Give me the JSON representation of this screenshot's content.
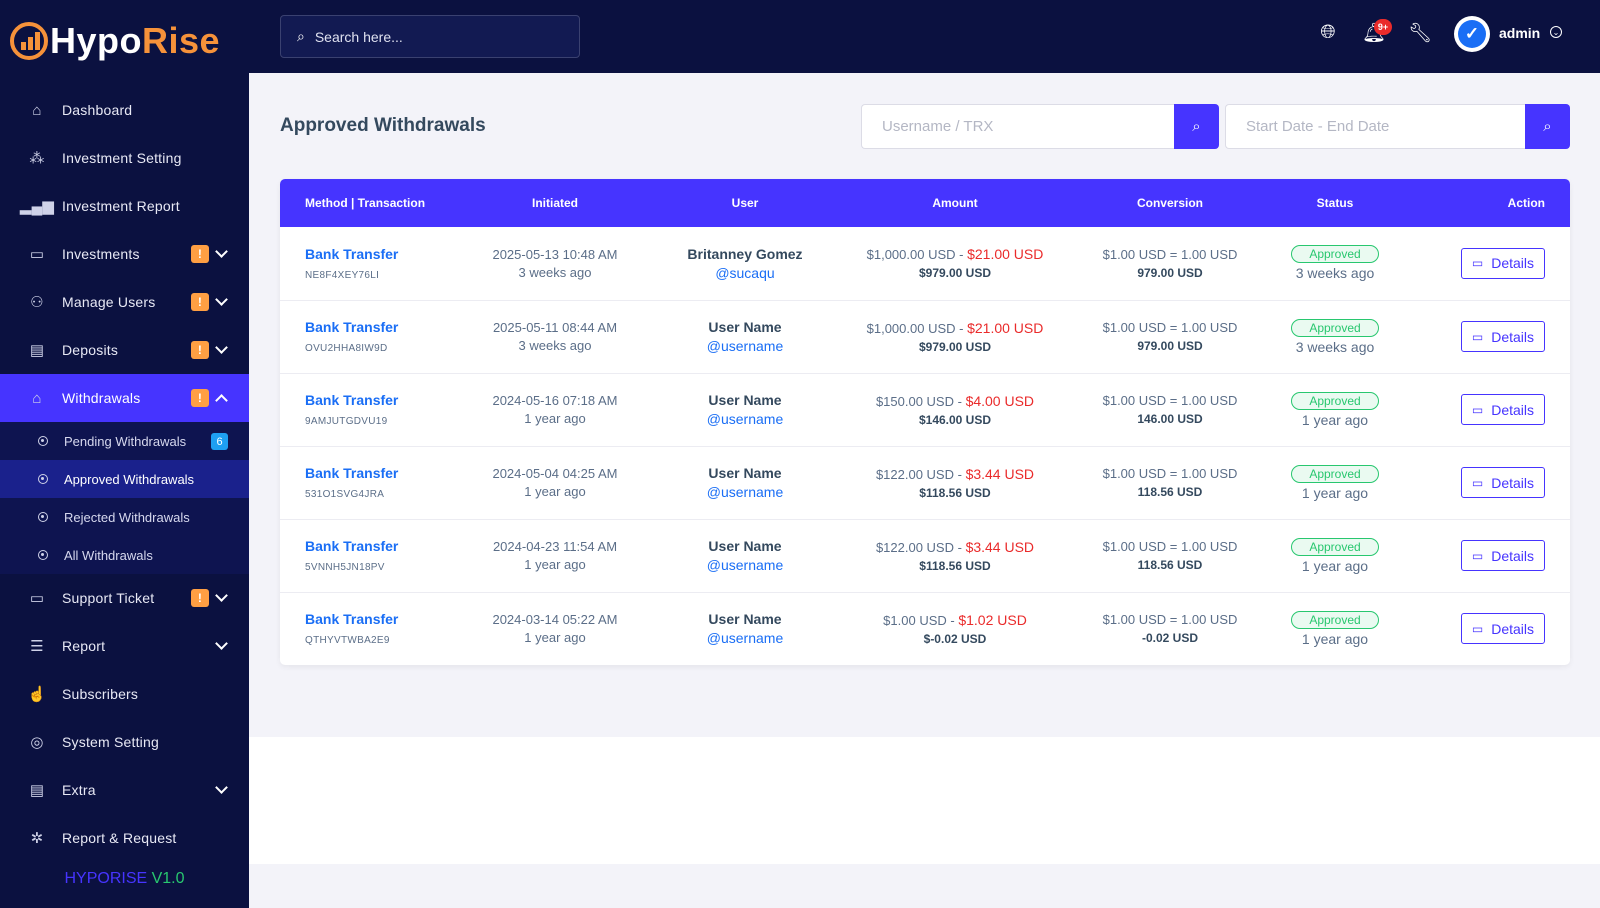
{
  "brand": {
    "part1": "Hypo",
    "part2": "Rise"
  },
  "sidebar": {
    "items": [
      {
        "label": "Dashboard",
        "icon": "home-icon"
      },
      {
        "label": "Investment Setting",
        "icon": "cubes-icon"
      },
      {
        "label": "Investment Report",
        "icon": "bar-chart-icon"
      },
      {
        "label": "Investments",
        "icon": "wallet-icon",
        "alert": "!"
      },
      {
        "label": "Manage Users",
        "icon": "users-icon",
        "alert": "!"
      },
      {
        "label": "Deposits",
        "icon": "file-icon",
        "alert": "!"
      },
      {
        "label": "Withdrawals",
        "icon": "bank-icon",
        "alert": "!"
      },
      {
        "label": "Support Ticket",
        "icon": "ticket-icon",
        "alert": "!"
      },
      {
        "label": "Report",
        "icon": "list-icon"
      },
      {
        "label": "Subscribers",
        "icon": "thumbs-up-icon"
      },
      {
        "label": "System Setting",
        "icon": "life-ring-icon"
      },
      {
        "label": "Extra",
        "icon": "server-icon"
      },
      {
        "label": "Report & Request",
        "icon": "bug-icon"
      }
    ],
    "withdrawals_sub": [
      {
        "label": "Pending Withdrawals",
        "count": "6"
      },
      {
        "label": "Approved Withdrawals"
      },
      {
        "label": "Rejected Withdrawals"
      },
      {
        "label": "All Withdrawals"
      }
    ],
    "version": {
      "name": "HYPORISE",
      "number": "V1.0"
    }
  },
  "topbar": {
    "search_placeholder": "Search here...",
    "notification_count": "9+",
    "user": "admin",
    "avatar_glyph": "✓"
  },
  "page": {
    "title": "Approved Withdrawals",
    "filter_user_placeholder": "Username / TRX",
    "filter_date_placeholder": "Start Date - End Date"
  },
  "table": {
    "headers": [
      "Method | Transaction",
      "Initiated",
      "User",
      "Amount",
      "Conversion",
      "Status",
      "Action"
    ],
    "action_label": "Details",
    "rows": [
      {
        "method": "Bank Transfer",
        "trx": "NE8F4XEY76LI",
        "date": "2025-05-13 10:48 AM",
        "ago": "3 weeks ago",
        "name": "Britanney Gomez",
        "handle": "@sucaqu",
        "amount": "$1,000.00 USD -",
        "charge": "$21.00 USD",
        "net": "$979.00 USD",
        "rate": "$1.00 USD = 1.00 USD",
        "converted": "979.00 USD",
        "status": "Approved",
        "status_ago": "3 weeks ago"
      },
      {
        "method": "Bank Transfer",
        "trx": "OVU2HHA8IW9D",
        "date": "2025-05-11 08:44 AM",
        "ago": "3 weeks ago",
        "name": "User Name",
        "handle": "@username",
        "amount": "$1,000.00 USD -",
        "charge": "$21.00 USD",
        "net": "$979.00 USD",
        "rate": "$1.00 USD = 1.00 USD",
        "converted": "979.00 USD",
        "status": "Approved",
        "status_ago": "3 weeks ago"
      },
      {
        "method": "Bank Transfer",
        "trx": "9AMJUTGDVU19",
        "date": "2024-05-16 07:18 AM",
        "ago": "1 year ago",
        "name": "User Name",
        "handle": "@username",
        "amount": "$150.00 USD -",
        "charge": "$4.00 USD",
        "net": "$146.00 USD",
        "rate": "$1.00 USD = 1.00 USD",
        "converted": "146.00 USD",
        "status": "Approved",
        "status_ago": "1 year ago"
      },
      {
        "method": "Bank Transfer",
        "trx": "531O1SVG4JRA",
        "date": "2024-05-04 04:25 AM",
        "ago": "1 year ago",
        "name": "User Name",
        "handle": "@username",
        "amount": "$122.00 USD -",
        "charge": "$3.44 USD",
        "net": "$118.56 USD",
        "rate": "$1.00 USD = 1.00 USD",
        "converted": "118.56 USD",
        "status": "Approved",
        "status_ago": "1 year ago"
      },
      {
        "method": "Bank Transfer",
        "trx": "5VNNH5JN18PV",
        "date": "2024-04-23 11:54 AM",
        "ago": "1 year ago",
        "name": "User Name",
        "handle": "@username",
        "amount": "$122.00 USD -",
        "charge": "$3.44 USD",
        "net": "$118.56 USD",
        "rate": "$1.00 USD = 1.00 USD",
        "converted": "118.56 USD",
        "status": "Approved",
        "status_ago": "1 year ago"
      },
      {
        "method": "Bank Transfer",
        "trx": "QTHYVTWBA2E9",
        "date": "2024-03-14 05:22 AM",
        "ago": "1 year ago",
        "name": "User Name",
        "handle": "@username",
        "amount": "$1.00 USD -",
        "charge": "$1.02 USD",
        "net": "$-0.02 USD",
        "rate": "$1.00 USD = 1.00 USD",
        "converted": "-0.02 USD",
        "status": "Approved",
        "status_ago": "1 year ago"
      }
    ]
  },
  "colors": {
    "primary": "#4634ff",
    "sidebar": "#0b1140",
    "link": "#1a6ef5",
    "danger": "#ea2b2b",
    "success": "#28c76f",
    "warning": "#ff9f43"
  }
}
